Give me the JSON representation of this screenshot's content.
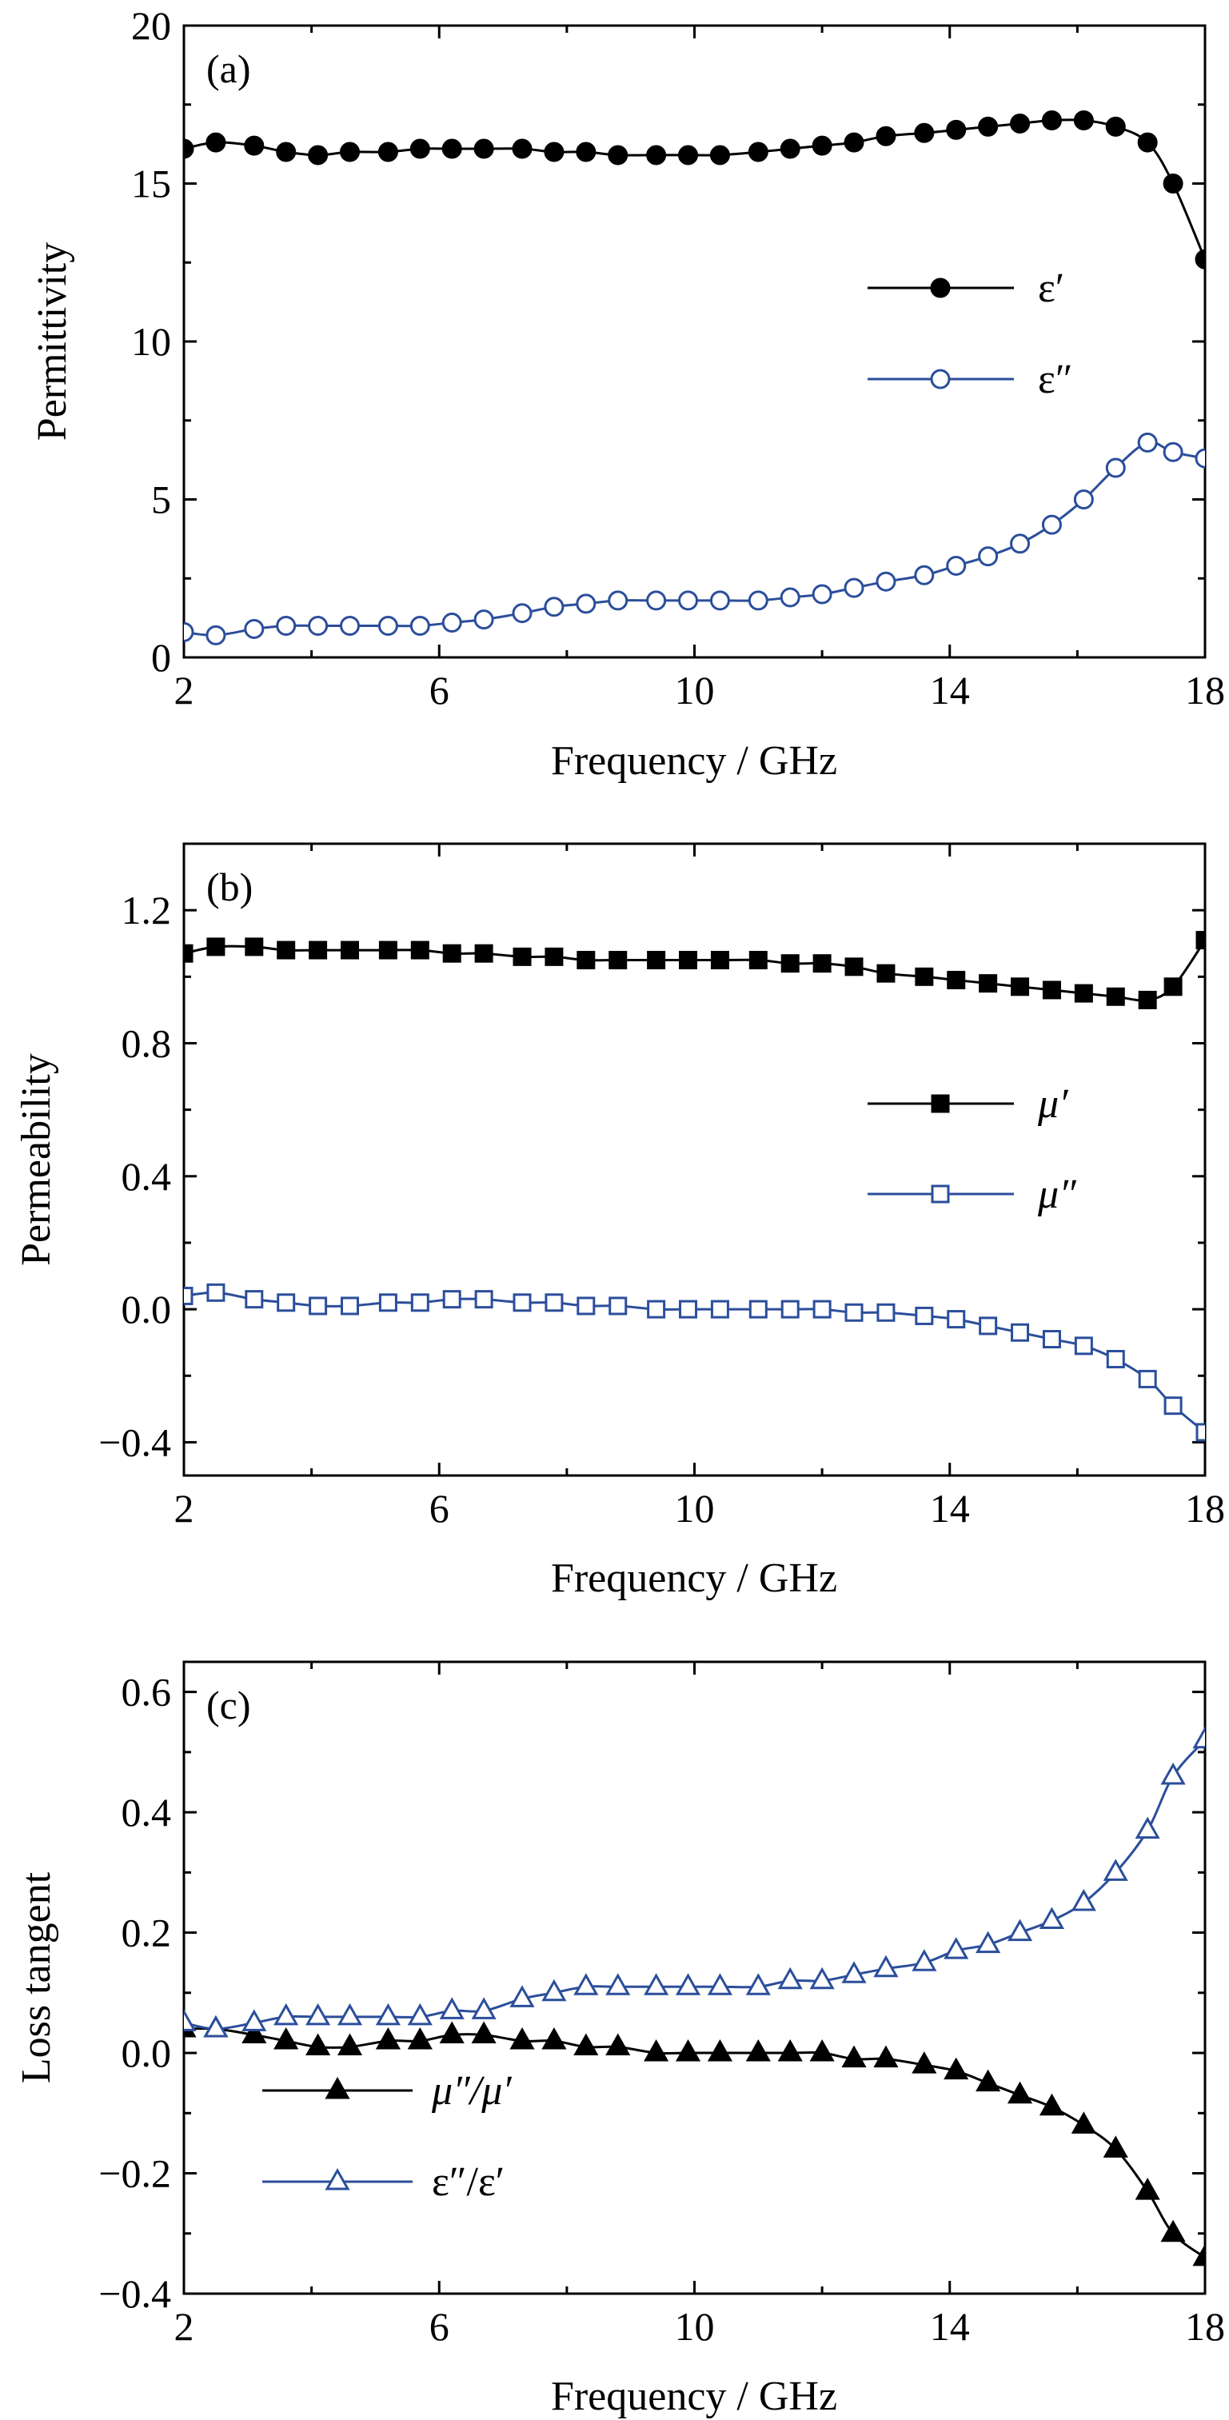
{
  "colors": {
    "black": "#000000",
    "blue": "#2b4e9b"
  },
  "panels": [
    {
      "id": "a",
      "label": "(a)",
      "ylabel": "Permittivity",
      "xlabel": "Frequency / GHz",
      "legend_position": "center-right"
    },
    {
      "id": "b",
      "label": "(b)",
      "ylabel": "Permeability",
      "xlabel": "Frequency / GHz",
      "legend_position": "center-right"
    },
    {
      "id": "c",
      "label": "(c)",
      "ylabel": "Loss tangent",
      "xlabel": "Frequency / GHz",
      "legend_position": "bottom-left"
    }
  ],
  "chart_data": [
    {
      "type": "line",
      "panel": "a",
      "xlim": [
        2,
        18
      ],
      "ylim": [
        0,
        20
      ],
      "xticks": [
        2,
        6,
        10,
        14,
        18
      ],
      "yticks": [
        0,
        5,
        10,
        15,
        20
      ],
      "ytick_labels": [
        "0",
        "5",
        "10",
        "15",
        "20"
      ],
      "x": [
        2,
        2.5,
        3.1,
        3.6,
        4.1,
        4.6,
        5.2,
        5.7,
        6.2,
        6.7,
        7.3,
        7.8,
        8.3,
        8.8,
        9.4,
        9.9,
        10.4,
        11,
        11.5,
        12,
        12.5,
        13,
        13.6,
        14.1,
        14.6,
        15.1,
        15.6,
        16.1,
        16.6,
        17.1,
        17.5,
        18
      ],
      "series": [
        {
          "name": "ε′",
          "color": "#000000",
          "marker": "filled-circle",
          "values": [
            16.1,
            16.3,
            16.2,
            16.0,
            15.9,
            16.0,
            16.0,
            16.1,
            16.1,
            16.1,
            16.1,
            16.0,
            16.0,
            15.9,
            15.9,
            15.9,
            15.9,
            16.0,
            16.1,
            16.2,
            16.3,
            16.5,
            16.6,
            16.7,
            16.8,
            16.9,
            17.0,
            17.0,
            16.8,
            16.3,
            15.0,
            12.6
          ]
        },
        {
          "name": "ε″",
          "color": "#2b4e9b",
          "marker": "open-circle",
          "values": [
            0.8,
            0.7,
            0.9,
            1.0,
            1.0,
            1.0,
            1.0,
            1.0,
            1.1,
            1.2,
            1.4,
            1.6,
            1.7,
            1.8,
            1.8,
            1.8,
            1.8,
            1.8,
            1.9,
            2.0,
            2.2,
            2.4,
            2.6,
            2.9,
            3.2,
            3.6,
            4.2,
            5.0,
            6.0,
            6.8,
            6.5,
            6.3
          ]
        }
      ]
    },
    {
      "type": "line",
      "panel": "b",
      "xlim": [
        2,
        18
      ],
      "ylim": [
        -0.5,
        1.4
      ],
      "xticks": [
        2,
        6,
        10,
        14,
        18
      ],
      "yticks": [
        -0.4,
        0.0,
        0.4,
        0.8,
        1.2
      ],
      "ytick_labels": [
        "−0.4",
        "0.0",
        "0.4",
        "0.8",
        "1.2"
      ],
      "x": [
        2,
        2.5,
        3.1,
        3.6,
        4.1,
        4.6,
        5.2,
        5.7,
        6.2,
        6.7,
        7.3,
        7.8,
        8.3,
        8.8,
        9.4,
        9.9,
        10.4,
        11,
        11.5,
        12,
        12.5,
        13,
        13.6,
        14.1,
        14.6,
        15.1,
        15.6,
        16.1,
        16.6,
        17.1,
        17.5,
        18
      ],
      "series": [
        {
          "name": "μ′",
          "color": "#000000",
          "marker": "filled-square",
          "values": [
            1.07,
            1.09,
            1.09,
            1.08,
            1.08,
            1.08,
            1.08,
            1.08,
            1.07,
            1.07,
            1.06,
            1.06,
            1.05,
            1.05,
            1.05,
            1.05,
            1.05,
            1.05,
            1.04,
            1.04,
            1.03,
            1.01,
            1.0,
            0.99,
            0.98,
            0.97,
            0.96,
            0.95,
            0.94,
            0.93,
            0.97,
            1.11
          ]
        },
        {
          "name": "μ″",
          "color": "#2b4e9b",
          "marker": "open-square",
          "values": [
            0.04,
            0.05,
            0.03,
            0.02,
            0.01,
            0.01,
            0.02,
            0.02,
            0.03,
            0.03,
            0.02,
            0.02,
            0.01,
            0.01,
            0.0,
            0.0,
            0.0,
            0.0,
            0.0,
            0.0,
            -0.01,
            -0.01,
            -0.02,
            -0.03,
            -0.05,
            -0.07,
            -0.09,
            -0.11,
            -0.15,
            -0.21,
            -0.29,
            -0.37
          ]
        }
      ]
    },
    {
      "type": "line",
      "panel": "c",
      "xlim": [
        2,
        18
      ],
      "ylim": [
        -0.4,
        0.65
      ],
      "xticks": [
        2,
        6,
        10,
        14,
        18
      ],
      "yticks": [
        -0.4,
        -0.2,
        0.0,
        0.2,
        0.4,
        0.6
      ],
      "ytick_labels": [
        "−0.4",
        "−0.2",
        "0.0",
        "0.2",
        "0.4",
        "0.6"
      ],
      "x": [
        2,
        2.5,
        3.1,
        3.6,
        4.1,
        4.6,
        5.2,
        5.7,
        6.2,
        6.7,
        7.3,
        7.8,
        8.3,
        8.8,
        9.4,
        9.9,
        10.4,
        11,
        11.5,
        12,
        12.5,
        13,
        13.6,
        14.1,
        14.6,
        15.1,
        15.6,
        16.1,
        16.6,
        17.1,
        17.5,
        18
      ],
      "series": [
        {
          "name": "μ″/μ′",
          "color": "#000000",
          "marker": "filled-triangle",
          "values": [
            0.04,
            0.04,
            0.03,
            0.02,
            0.01,
            0.01,
            0.02,
            0.02,
            0.03,
            0.03,
            0.02,
            0.02,
            0.01,
            0.01,
            0.0,
            0.0,
            0.0,
            0.0,
            0.0,
            0.0,
            -0.01,
            -0.01,
            -0.02,
            -0.03,
            -0.05,
            -0.07,
            -0.09,
            -0.12,
            -0.16,
            -0.23,
            -0.3,
            -0.34
          ]
        },
        {
          "name": "ε″/ε′",
          "color": "#2b4e9b",
          "marker": "open-triangle",
          "values": [
            0.05,
            0.04,
            0.05,
            0.06,
            0.06,
            0.06,
            0.06,
            0.06,
            0.07,
            0.07,
            0.09,
            0.1,
            0.11,
            0.11,
            0.11,
            0.11,
            0.11,
            0.11,
            0.12,
            0.12,
            0.13,
            0.14,
            0.15,
            0.17,
            0.18,
            0.2,
            0.22,
            0.25,
            0.3,
            0.37,
            0.46,
            0.52
          ]
        }
      ]
    }
  ]
}
